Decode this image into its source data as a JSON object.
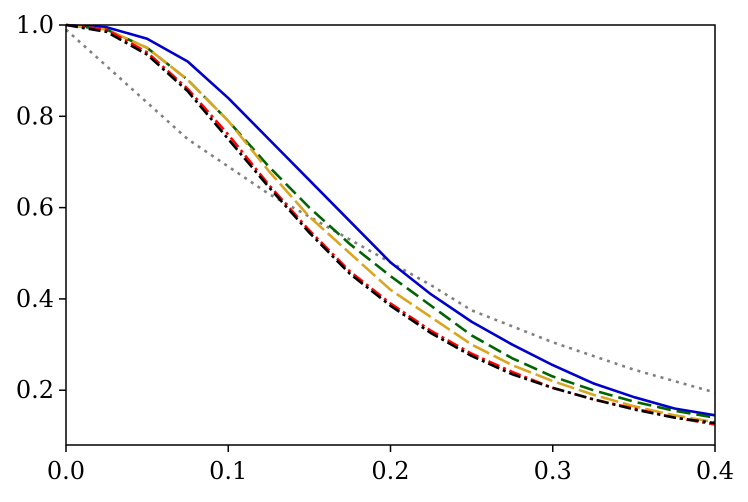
{
  "chart_data": {
    "type": "line",
    "title": "",
    "xlabel": "",
    "ylabel": "",
    "xlim": [
      0.0,
      0.4
    ],
    "ylim": [
      0.08,
      1.0
    ],
    "grid": false,
    "legend": "none",
    "x_ticks": [
      {
        "value": 0.0,
        "label": "0.0"
      },
      {
        "value": 0.1,
        "label": "0.1"
      },
      {
        "value": 0.2,
        "label": "0.2"
      },
      {
        "value": 0.3,
        "label": "0.3"
      },
      {
        "value": 0.4,
        "label": "0.4"
      }
    ],
    "y_ticks": [
      {
        "value": 0.2,
        "label": "0.2"
      },
      {
        "value": 0.4,
        "label": "0.4"
      },
      {
        "value": 0.6,
        "label": "0.6"
      },
      {
        "value": 0.8,
        "label": "0.8"
      },
      {
        "value": 1.0,
        "label": "1.0"
      }
    ],
    "series": [
      {
        "color": "#808080",
        "style": "dotted",
        "x": [
          0.0,
          0.025,
          0.05,
          0.075,
          0.1,
          0.125,
          0.15,
          0.175,
          0.2,
          0.225,
          0.25,
          0.275,
          0.3,
          0.325,
          0.35,
          0.375,
          0.4
        ],
        "y": [
          0.99,
          0.91,
          0.83,
          0.75,
          0.69,
          0.63,
          0.58,
          0.53,
          0.48,
          0.43,
          0.375,
          0.34,
          0.305,
          0.275,
          0.245,
          0.22,
          0.195
        ]
      },
      {
        "color": "#0000cc",
        "style": "solid",
        "x": [
          0.0,
          0.025,
          0.05,
          0.075,
          0.1,
          0.125,
          0.15,
          0.175,
          0.2,
          0.225,
          0.25,
          0.275,
          0.3,
          0.325,
          0.35,
          0.375,
          0.4
        ],
        "y": [
          1.0,
          0.995,
          0.97,
          0.92,
          0.84,
          0.75,
          0.66,
          0.57,
          0.48,
          0.41,
          0.35,
          0.3,
          0.255,
          0.215,
          0.185,
          0.16,
          0.145
        ]
      },
      {
        "color": "#006400",
        "style": "dashed",
        "x": [
          0.0,
          0.025,
          0.05,
          0.075,
          0.1,
          0.125,
          0.15,
          0.175,
          0.2,
          0.225,
          0.25,
          0.275,
          0.3,
          0.325,
          0.35,
          0.375,
          0.4
        ],
        "y": [
          1.0,
          0.99,
          0.95,
          0.88,
          0.79,
          0.69,
          0.6,
          0.52,
          0.45,
          0.385,
          0.32,
          0.27,
          0.23,
          0.2,
          0.175,
          0.155,
          0.14
        ]
      },
      {
        "color": "#daa520",
        "style": "long-dashed",
        "x": [
          0.0,
          0.025,
          0.05,
          0.075,
          0.1,
          0.125,
          0.15,
          0.175,
          0.2,
          0.225,
          0.25,
          0.275,
          0.3,
          0.325,
          0.35,
          0.375,
          0.4
        ],
        "y": [
          1.0,
          0.99,
          0.95,
          0.88,
          0.79,
          0.68,
          0.58,
          0.5,
          0.42,
          0.36,
          0.3,
          0.255,
          0.22,
          0.19,
          0.165,
          0.145,
          0.13
        ]
      },
      {
        "color": "#ff0000",
        "style": "dash-dot",
        "x": [
          0.0,
          0.025,
          0.05,
          0.075,
          0.1,
          0.125,
          0.15,
          0.175,
          0.2,
          0.225,
          0.25,
          0.275,
          0.3,
          0.325,
          0.35,
          0.375,
          0.4
        ],
        "y": [
          1.0,
          0.99,
          0.94,
          0.86,
          0.76,
          0.65,
          0.55,
          0.46,
          0.39,
          0.33,
          0.28,
          0.24,
          0.205,
          0.18,
          0.16,
          0.14,
          0.125
        ]
      },
      {
        "color": "#000000",
        "style": "dash-dot",
        "x": [
          0.0,
          0.025,
          0.05,
          0.075,
          0.1,
          0.125,
          0.15,
          0.175,
          0.2,
          0.225,
          0.25,
          0.275,
          0.3,
          0.325,
          0.35,
          0.375,
          0.4
        ],
        "y": [
          1.0,
          0.985,
          0.935,
          0.855,
          0.75,
          0.645,
          0.545,
          0.455,
          0.385,
          0.325,
          0.275,
          0.235,
          0.205,
          0.18,
          0.158,
          0.14,
          0.128
        ]
      }
    ]
  }
}
